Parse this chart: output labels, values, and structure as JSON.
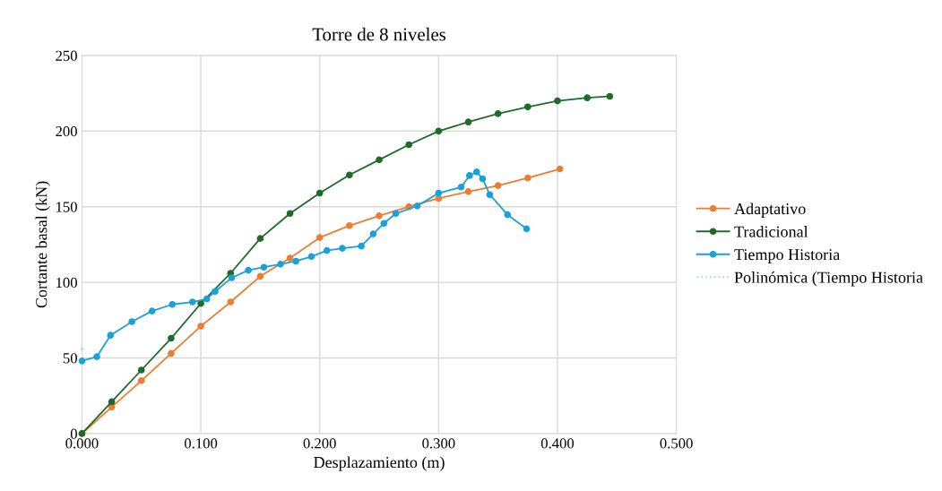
{
  "chart_data": {
    "type": "line",
    "title": "Torre de 8 niveles",
    "xlabel": "Desplazamiento (m)",
    "ylabel": "Cortante basal (kN)",
    "xlim": [
      0,
      0.5
    ],
    "xticks": [
      {
        "value": 0,
        "label": "0.000"
      },
      {
        "value": 0.1,
        "label": "0.100"
      },
      {
        "value": 0.2,
        "label": "0.200"
      },
      {
        "value": 0.3,
        "label": "0.300"
      },
      {
        "value": 0.4,
        "label": "0.400"
      },
      {
        "value": 0.5,
        "label": "0.500"
      }
    ],
    "ylim": [
      0,
      250
    ],
    "yticks": [
      0,
      50,
      100,
      150,
      200,
      250
    ],
    "grid": true,
    "legend": "right",
    "marker": "circle",
    "line_style": "solid",
    "series": [
      {
        "name": "Adaptativo",
        "color": "#ed7d31",
        "x": [
          0,
          0.025,
          0.05,
          0.075,
          0.1,
          0.125,
          0.15,
          0.175,
          0.2,
          0.225,
          0.25,
          0.275,
          0.3,
          0.325,
          0.35,
          0.375,
          0.402
        ],
        "values": [
          0,
          17.5,
          35,
          53,
          71,
          87,
          104,
          116,
          129.6,
          137.5,
          144,
          150,
          155.5,
          160,
          164,
          169,
          175
        ]
      },
      {
        "name": "Tradicional",
        "color": "#1e6b2a",
        "x": [
          0,
          0.025,
          0.05,
          0.075,
          0.1,
          0.125,
          0.15,
          0.175,
          0.2,
          0.225,
          0.25,
          0.275,
          0.3,
          0.325,
          0.35,
          0.375,
          0.4,
          0.425,
          0.444
        ],
        "values": [
          0,
          21,
          42,
          63,
          86,
          106,
          129,
          145.5,
          159,
          171,
          181,
          191,
          200,
          206,
          211.5,
          216,
          220,
          222,
          223
        ]
      },
      {
        "name": "Tiempo Historia",
        "color": "#1ba1d9",
        "x": [
          0,
          0.0125,
          0.024,
          0.042,
          0.059,
          0.076,
          0.093,
          0.105,
          0.112,
          0.126,
          0.14,
          0.153,
          0.167,
          0.18,
          0.193,
          0.206,
          0.219,
          0.235,
          0.245,
          0.254,
          0.264,
          0.282,
          0.3,
          0.319,
          0.326,
          0.332,
          0.337,
          0.343,
          0.358,
          0.374
        ],
        "values": [
          48,
          50.8,
          65,
          74,
          81,
          85.4,
          87,
          89,
          94,
          103,
          108,
          110,
          112,
          114,
          117,
          121,
          122.5,
          124,
          132,
          139,
          145.5,
          150.5,
          159,
          163,
          170.6,
          173,
          168.5,
          158,
          144.7,
          135.4
        ]
      },
      {
        "name": "Polinómica (Tiempo Historia",
        "color": "#a6d9ee",
        "marker": "none",
        "line_style": "dotted",
        "x": [
          0
        ],
        "values": [
          56
        ]
      }
    ]
  }
}
